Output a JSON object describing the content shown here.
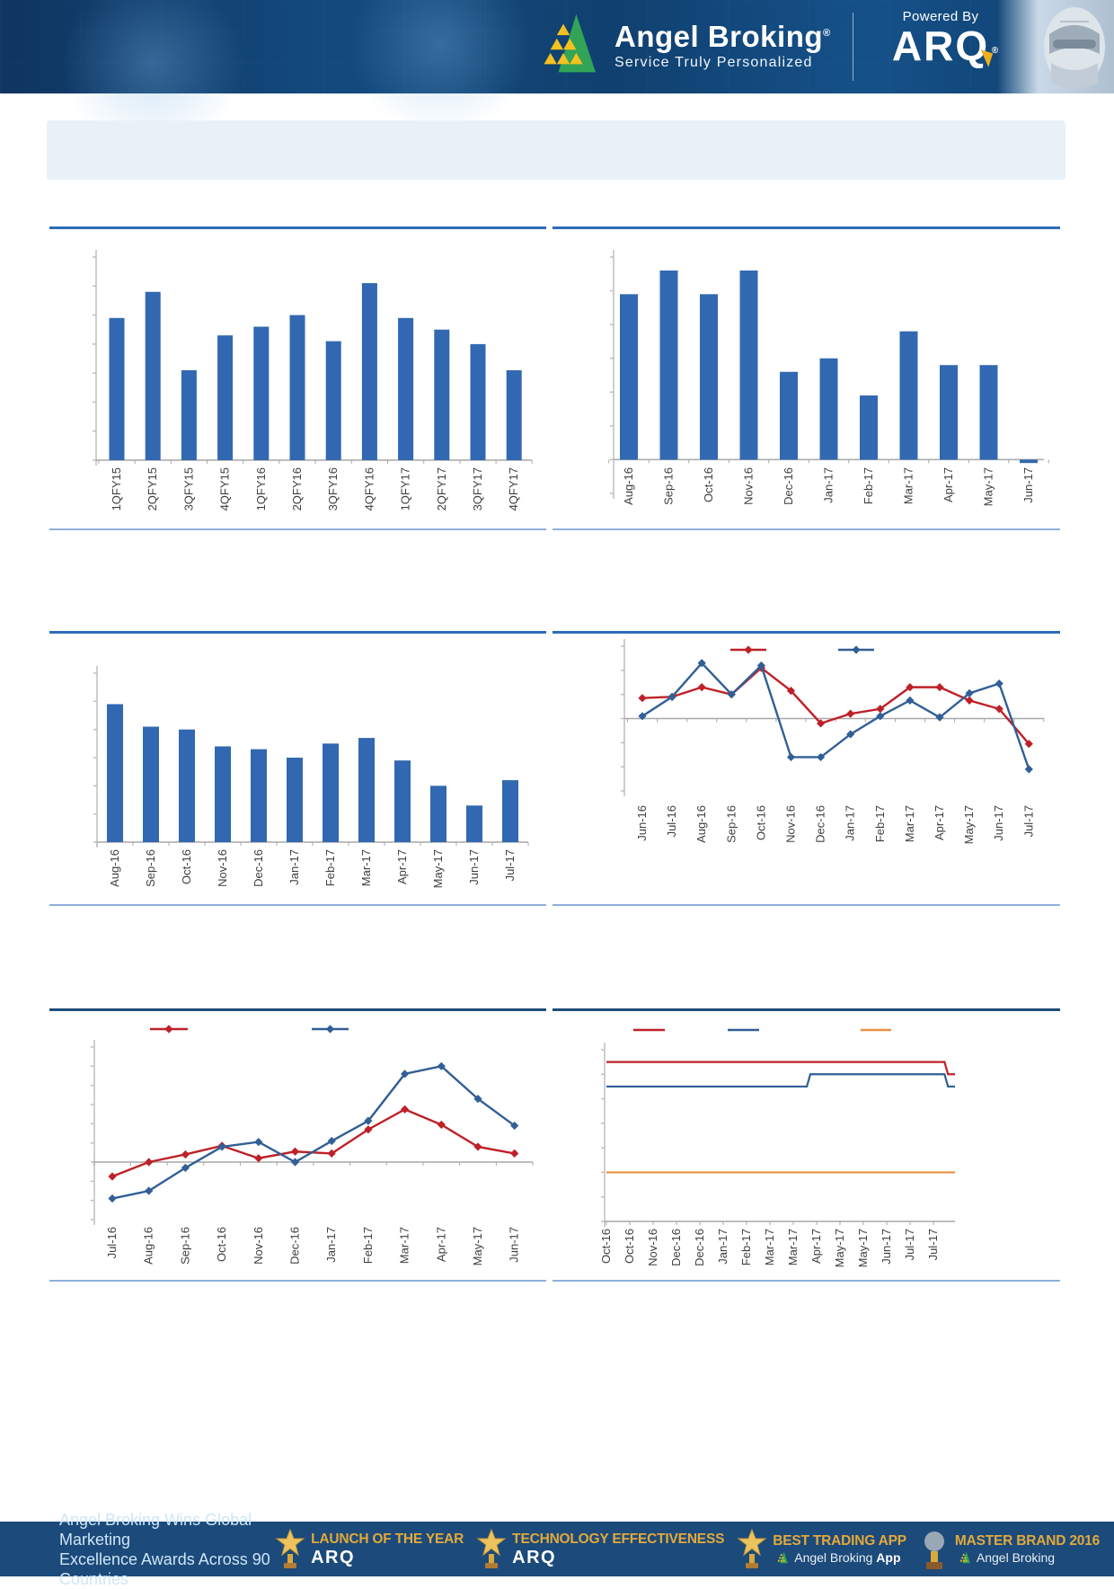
{
  "header": {
    "brand": "Angel Broking",
    "registered": "®",
    "tagline": "Service Truly Personalized",
    "powered_by": "Powered By",
    "arq": "ARQ"
  },
  "banner": {
    "text": ""
  },
  "footer": {
    "award_line1": "Angel Broking Wins Global Marketing",
    "award_line2": "Excellence Awards Across 90 Countries",
    "badges": [
      {
        "title": "LAUNCH OF THE YEAR",
        "style": "arq",
        "subtitle": "ARQ"
      },
      {
        "title": "TECHNOLOGY EFFECTIVENESS",
        "style": "arq",
        "subtitle": "ARQ"
      },
      {
        "title": "BEST TRADING APP",
        "style": "app",
        "subtitle": "Angel Broking",
        "subtitle_bold": "App"
      },
      {
        "title": "MASTER BRAND 2016",
        "style": "app",
        "subtitle": "Angel Broking",
        "subtitle_bold": ""
      }
    ]
  },
  "colors": {
    "bar_blue": "#3168b1",
    "line_red": "#be2128",
    "line_blue": "#315f96",
    "line_orange": "#e89040",
    "axis_gray": "#a8a8a8",
    "tick_gray": "#bfbfbf",
    "label_gray": "#3f3f3f",
    "rule_blue": "#2e6db8",
    "rule_light": "#8fb0d9",
    "header_navy": "#134a7e",
    "footer_navy": "#1c4a7a",
    "gold": "#e2a93b"
  },
  "chart_data": [
    {
      "type": "bar",
      "categories": [
        "1QFY15",
        "2QFY15",
        "3QFY15",
        "4QFY15",
        "1QFY16",
        "2QFY16",
        "3QFY16",
        "4QFY16",
        "1QFY17",
        "2QFY17",
        "3QFY17",
        "4QFY17"
      ],
      "values": [
        49,
        58,
        31,
        43,
        46,
        50,
        41,
        61,
        49,
        45,
        40,
        31
      ],
      "ylim": [
        0,
        70
      ],
      "tick_step": 10,
      "grid": false,
      "legend": null
    },
    {
      "type": "bar",
      "categories": [
        "Aug-16",
        "Sep-16",
        "Oct-16",
        "Nov-16",
        "Dec-16",
        "Jan-17",
        "Feb-17",
        "Mar-17",
        "Apr-17",
        "May-17",
        "Jun-17"
      ],
      "values": [
        49,
        56,
        49,
        56,
        26,
        30,
        19,
        38,
        28,
        28,
        -1
      ],
      "ylim": [
        -10,
        60
      ],
      "tick_step": 10,
      "grid": false,
      "legend": null
    },
    {
      "type": "bar",
      "categories": [
        "Aug-16",
        "Sep-16",
        "Oct-16",
        "Nov-16",
        "Dec-16",
        "Jan-17",
        "Feb-17",
        "Mar-17",
        "Apr-17",
        "May-17",
        "Jun-17",
        "Jul-17"
      ],
      "values": [
        49,
        41,
        40,
        34,
        33,
        30,
        35,
        37,
        29,
        20,
        13,
        22
      ],
      "ylim": [
        0,
        60
      ],
      "tick_step": 10,
      "grid": false,
      "legend": null
    },
    {
      "type": "line",
      "categories": [
        "Jun-16",
        "Jul-16",
        "Aug-16",
        "Sep-16",
        "Oct-16",
        "Nov-16",
        "Dec-16",
        "Jan-17",
        "Feb-17",
        "Mar-17",
        "Apr-17",
        "May-17",
        "Jun-17",
        "Jul-17"
      ],
      "series": [
        {
          "name": "series-red",
          "color": "#be2128",
          "marker": "diamond",
          "values": [
            0.85,
            0.9,
            1.3,
            1.0,
            2.1,
            1.15,
            -0.2,
            0.2,
            0.4,
            1.3,
            1.3,
            0.75,
            0.4,
            -1.05
          ]
        },
        {
          "name": "series-blue",
          "color": "#315f96",
          "marker": "diamond",
          "values": [
            0.1,
            0.9,
            2.3,
            1.0,
            2.2,
            -1.6,
            -1.6,
            -0.65,
            0.1,
            0.75,
            0.05,
            1.05,
            1.45,
            -2.1
          ]
        }
      ],
      "ylim": [
        -3,
        3
      ],
      "tick_step": 1,
      "grid": false,
      "legend": {
        "position": "top",
        "labels": [
          "",
          ""
        ]
      }
    },
    {
      "type": "line",
      "categories": [
        "Jul-16",
        "Aug-16",
        "Sep-16",
        "Oct-16",
        "Nov-16",
        "Dec-16",
        "Jan-17",
        "Feb-17",
        "Mar-17",
        "Apr-17",
        "May-17",
        "Jun-17"
      ],
      "series": [
        {
          "name": "series-red",
          "color": "#be2128",
          "marker": "diamond",
          "values": [
            -0.75,
            0,
            0.4,
            0.85,
            0.2,
            0.55,
            0.45,
            1.7,
            2.75,
            1.95,
            0.8,
            0.45
          ]
        },
        {
          "name": "series-blue",
          "color": "#315f96",
          "marker": "diamond",
          "values": [
            -1.9,
            -1.5,
            -0.3,
            0.8,
            1.05,
            0,
            1.1,
            2.15,
            4.6,
            5.0,
            3.3,
            1.9
          ]
        }
      ],
      "ylim": [
        -3,
        6
      ],
      "tick_step": 1,
      "grid": false,
      "legend": {
        "position": "top",
        "labels": [
          "",
          ""
        ]
      }
    },
    {
      "type": "step-line",
      "categories": [
        "Oct-16",
        "Oct-16",
        "Nov-16",
        "Dec-16",
        "Dec-16",
        "Jan-17",
        "Feb-17",
        "Mar-17",
        "Mar-17",
        "Apr-17",
        "May-17",
        "May-17",
        "Jun-17",
        "Jul-17",
        "Jul-17"
      ],
      "series": [
        {
          "name": "series-red",
          "color": "#be2128",
          "points": [
            [
              0,
              6.25
            ],
            [
              0.97,
              6.25
            ],
            [
              0.98,
              6.0
            ],
            [
              1,
              6.0
            ]
          ]
        },
        {
          "name": "series-blue",
          "color": "#315f96",
          "points": [
            [
              0,
              5.75
            ],
            [
              0.575,
              5.75
            ],
            [
              0.585,
              6.0
            ],
            [
              0.97,
              6.0
            ],
            [
              0.98,
              5.75
            ],
            [
              1,
              5.75
            ]
          ]
        },
        {
          "name": "series-orange",
          "color": "#e89040",
          "points": [
            [
              0,
              4.0
            ],
            [
              1,
              4.0
            ]
          ]
        }
      ],
      "ylim": [
        3,
        6.5
      ],
      "tick_step": 0.5,
      "grid": false,
      "legend": {
        "position": "top",
        "labels": [
          "",
          "",
          ""
        ]
      }
    }
  ]
}
